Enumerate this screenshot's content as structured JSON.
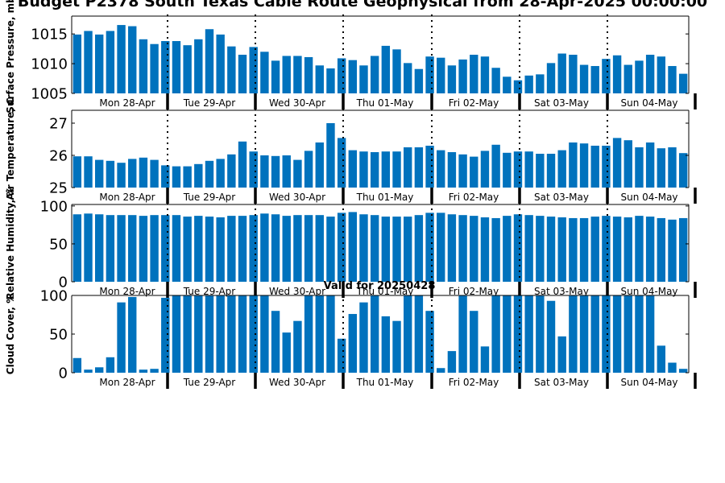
{
  "title": "Budget P2378 South Texas Cable Route Geophysical from 28-Apr-2025 00:00:00",
  "valid_label": "Valid for 20250428",
  "colors": {
    "bar": "#0072bd",
    "axis": "#000000",
    "divider": "#000000"
  },
  "chart_data": [
    {
      "type": "bar",
      "ylabel": "Surface Pressure, mb",
      "ylim": [
        1005,
        1018
      ],
      "yticks": [
        1005,
        1010,
        1015
      ],
      "day_labels": [
        "Mon 28-Apr",
        "Tue 29-Apr",
        "Wed 30-Apr",
        "Thu 01-May",
        "Fri 02-May",
        "Sat 03-May",
        "Sun 04-May"
      ],
      "values": [
        1014.9,
        1015.5,
        1014.9,
        1015.5,
        1016.5,
        1016.3,
        1014.1,
        1013.3,
        1013.8,
        1013.8,
        1013.1,
        1014.1,
        1015.8,
        1014.9,
        1012.9,
        1011.5,
        1012.8,
        1012.0,
        1010.5,
        1011.3,
        1011.3,
        1011.1,
        1009.7,
        1009.2,
        1010.9,
        1010.6,
        1009.7,
        1011.3,
        1013.0,
        1012.4,
        1010.1,
        1009.1,
        1011.2,
        1011.0,
        1009.7,
        1010.7,
        1011.5,
        1011.2,
        1009.3,
        1007.8,
        1007.2,
        1008.0,
        1008.2,
        1010.1,
        1011.7,
        1011.5,
        1009.8,
        1009.6,
        1010.8,
        1011.4,
        1009.8,
        1010.5,
        1011.5,
        1011.2,
        1009.6,
        1008.3
      ]
    },
    {
      "type": "bar",
      "ylabel": "Air Temperature, C",
      "ylim": [
        25,
        27.4
      ],
      "yticks": [
        25,
        26,
        27
      ],
      "day_labels": [
        "Mon 28-Apr",
        "Tue 29-Apr",
        "Wed 30-Apr",
        "Thu 01-May",
        "Fri 02-May",
        "Sat 03-May",
        "Sun 04-May"
      ],
      "values": [
        25.97,
        25.97,
        25.86,
        25.83,
        25.77,
        25.89,
        25.93,
        25.86,
        25.69,
        25.66,
        25.66,
        25.73,
        25.83,
        25.89,
        26.03,
        26.43,
        26.12,
        26.0,
        25.98,
        26.0,
        25.86,
        26.14,
        26.4,
        27.0,
        26.54,
        26.16,
        26.12,
        26.1,
        26.12,
        26.12,
        26.25,
        26.25,
        26.3,
        26.16,
        26.1,
        26.03,
        25.96,
        26.14,
        26.33,
        26.08,
        26.12,
        26.12,
        26.05,
        26.05,
        26.16,
        26.4,
        26.37,
        26.3,
        26.3,
        26.54,
        26.47,
        26.25,
        26.4,
        26.22,
        26.25,
        26.07
      ]
    },
    {
      "type": "bar",
      "ylabel": "Relative Humidity, %",
      "ylim": [
        0,
        102
      ],
      "yticks": [
        0,
        50,
        100
      ],
      "day_labels": [
        "Mon 28-Apr",
        "Tue 29-Apr",
        "Wed 30-Apr",
        "Thu 01-May",
        "Fri 02-May",
        "Sat 03-May",
        "Sun 04-May"
      ],
      "values": [
        89,
        90,
        89,
        88,
        88,
        88,
        87,
        88,
        88,
        88,
        86,
        87,
        86,
        85,
        87,
        87,
        88,
        90,
        89,
        87,
        88,
        88,
        88,
        86,
        91,
        92,
        89,
        88,
        86,
        86,
        86,
        88,
        91,
        91,
        89,
        88,
        87,
        85,
        84,
        87,
        89,
        88,
        87,
        86,
        85,
        84,
        84,
        86,
        87,
        86,
        85,
        87,
        86,
        84,
        82,
        84
      ]
    },
    {
      "type": "bar",
      "ylabel": "Cloud Cover, %",
      "ylim": [
        0,
        100
      ],
      "yticks": [
        0,
        50,
        100
      ],
      "day_labels": [
        "Mon 28-Apr",
        "Tue 29-Apr",
        "Wed 30-Apr",
        "Thu 01-May",
        "Fri 02-May",
        "Sat 03-May",
        "Sun 04-May"
      ],
      "values": [
        19,
        4,
        7,
        20,
        91,
        98,
        4,
        5,
        97,
        100,
        100,
        100,
        100,
        100,
        100,
        100,
        100,
        100,
        80,
        52,
        67,
        100,
        100,
        100,
        44,
        76,
        91,
        100,
        73,
        67,
        100,
        100,
        80,
        6,
        28,
        100,
        80,
        34,
        100,
        100,
        100,
        100,
        100,
        93,
        47,
        100,
        100,
        100,
        100,
        100,
        100,
        100,
        100,
        35,
        13,
        5
      ]
    }
  ]
}
